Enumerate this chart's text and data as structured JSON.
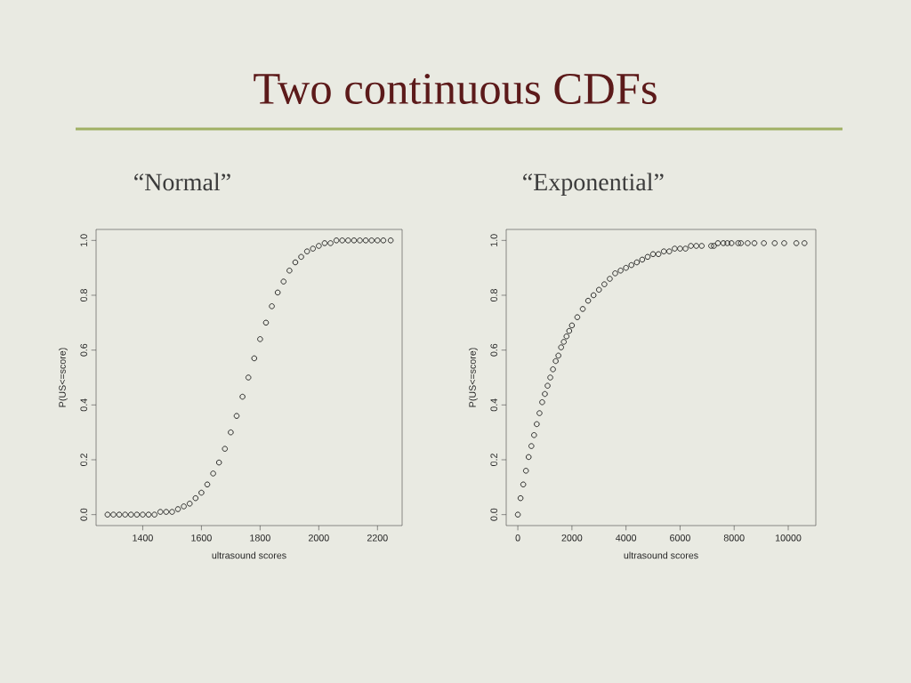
{
  "chart_data": [
    {
      "type": "scatter",
      "title": "“Normal”",
      "annotations": [
        "Two continuous CDFs"
      ],
      "xlabel": "ultrasound scores",
      "ylabel": "P(US<=score)",
      "marker": "circle",
      "xlim": [
        1241,
        2284
      ],
      "ylim": [
        -0.04,
        1.04
      ],
      "xticks": [
        1400,
        1600,
        1800,
        2000,
        2200
      ],
      "yticks": [
        {
          "value": 0,
          "label": "0.0"
        },
        {
          "value": 0.2,
          "label": "0.2"
        },
        {
          "value": 0.4,
          "label": "0.4"
        },
        {
          "value": 0.6,
          "label": "0.6"
        },
        {
          "value": 0.8,
          "label": "0.8"
        },
        {
          "value": 1,
          "label": "1.0"
        }
      ],
      "series": [
        {
          "color": "#000000",
          "x": [
            1280,
            1300,
            1320,
            1340,
            1360,
            1380,
            1400,
            1420,
            1440,
            1460,
            1480,
            1500,
            1520,
            1540,
            1560,
            1580,
            1600,
            1620,
            1640,
            1660,
            1680,
            1700,
            1720,
            1740,
            1760,
            1780,
            1800,
            1820,
            1840,
            1860,
            1880,
            1900,
            1920,
            1940,
            1960,
            1980,
            2000,
            2020,
            2040,
            2060,
            2080,
            2100,
            2120,
            2140,
            2160,
            2180,
            2200,
            2220,
            2245
          ],
          "values": [
            0,
            0,
            0,
            0,
            0,
            0,
            0,
            0,
            0,
            0.01,
            0.01,
            0.01,
            0.02,
            0.03,
            0.04,
            0.06,
            0.08,
            0.11,
            0.15,
            0.19,
            0.24,
            0.3,
            0.36,
            0.43,
            0.5,
            0.57,
            0.64,
            0.7,
            0.76,
            0.81,
            0.85,
            0.89,
            0.92,
            0.94,
            0.96,
            0.97,
            0.98,
            0.99,
            0.99,
            1,
            1,
            1,
            1,
            1,
            1,
            1,
            1,
            1,
            1
          ]
        }
      ]
    },
    {
      "type": "scatter",
      "title": "“Exponential”",
      "xlabel": "ultrasound scores",
      "ylabel": "P(US<=score)",
      "marker": "circle",
      "xlim": [
        -430,
        11020
      ],
      "ylim": [
        -0.04,
        1.04
      ],
      "xticks": [
        0,
        2000,
        4000,
        6000,
        8000,
        10000
      ],
      "yticks": [
        {
          "value": 0,
          "label": "0.0"
        },
        {
          "value": 0.2,
          "label": "0.2"
        },
        {
          "value": 0.4,
          "label": "0.4"
        },
        {
          "value": 0.6,
          "label": "0.6"
        },
        {
          "value": 0.8,
          "label": "0.8"
        },
        {
          "value": 1,
          "label": "1.0"
        }
      ],
      "series": [
        {
          "color": "#000000",
          "x": [
            0,
            100,
            200,
            300,
            400,
            500,
            600,
            700,
            800,
            900,
            1000,
            1100,
            1200,
            1300,
            1400,
            1500,
            1600,
            1700,
            1800,
            1900,
            2000,
            2200,
            2400,
            2600,
            2800,
            3000,
            3200,
            3400,
            3600,
            3800,
            4000,
            4200,
            4400,
            4600,
            4800,
            5000,
            5200,
            5400,
            5600,
            5800,
            6000,
            6200,
            6400,
            6600,
            6800,
            7150,
            7250,
            7400,
            7600,
            7750,
            7900,
            8150,
            8250,
            8500,
            8750,
            9100,
            9500,
            9850,
            10300,
            10600
          ],
          "values": [
            0,
            0.06,
            0.11,
            0.16,
            0.21,
            0.25,
            0.29,
            0.33,
            0.37,
            0.41,
            0.44,
            0.47,
            0.5,
            0.53,
            0.56,
            0.58,
            0.61,
            0.63,
            0.65,
            0.67,
            0.69,
            0.72,
            0.75,
            0.78,
            0.8,
            0.82,
            0.84,
            0.86,
            0.88,
            0.89,
            0.9,
            0.91,
            0.92,
            0.93,
            0.94,
            0.95,
            0.95,
            0.96,
            0.96,
            0.97,
            0.97,
            0.97,
            0.98,
            0.98,
            0.98,
            0.98,
            0.98,
            0.99,
            0.99,
            0.99,
            0.99,
            0.99,
            0.99,
            0.99,
            0.99,
            0.99,
            0.99,
            0.99,
            0.99,
            0.99
          ]
        }
      ]
    }
  ]
}
